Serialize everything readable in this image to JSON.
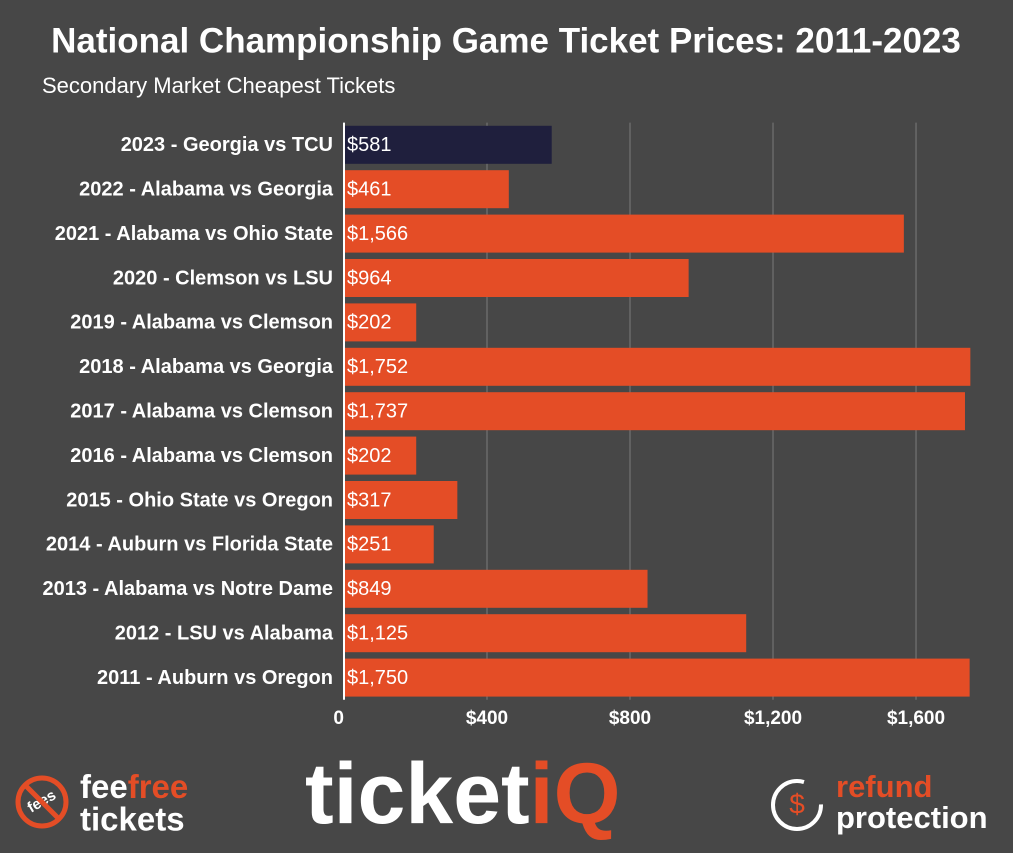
{
  "chart_data": {
    "type": "barh",
    "title": "National Championship Game Ticket Prices: 2011-2023",
    "subtitle": "Secondary Market Cheapest Tickets",
    "categories": [
      "2023 - Georgia vs TCU",
      "2022 - Alabama vs Georgia",
      "2021 - Alabama vs Ohio State",
      "2020 - Clemson vs LSU",
      "2019 - Alabama vs Clemson",
      "2018 - Alabama vs Georgia",
      "2017 - Alabama vs Clemson",
      "2016 - Alabama vs Clemson",
      "2015 - Ohio State vs Oregon",
      "2014 - Auburn vs Florida State",
      "2013 - Alabama vs Notre Dame",
      "2012 - LSU vs Alabama",
      "2011 - Auburn vs Oregon"
    ],
    "values": [
      581,
      461,
      1566,
      964,
      202,
      1752,
      1737,
      202,
      317,
      251,
      849,
      1125,
      1750
    ],
    "value_labels": [
      "$581",
      "$461",
      "$1,566",
      "$964",
      "$202",
      "$1,752",
      "$1,737",
      "$202",
      "$317",
      "$251",
      "$849",
      "$1,125",
      "$1,750"
    ],
    "colors": [
      "#1f1f3d",
      "#e44d26",
      "#e44d26",
      "#e44d26",
      "#e44d26",
      "#e44d26",
      "#e44d26",
      "#e44d26",
      "#e44d26",
      "#e44d26",
      "#e44d26",
      "#e44d26",
      "#e44d26"
    ],
    "xlim": [
      0,
      1765
    ],
    "xticks": [
      0,
      {
        "value": 400,
        "label": "$400"
      },
      {
        "value": 800,
        "label": "$800"
      },
      {
        "value": 1200,
        "label": "$1,200"
      },
      {
        "value": 1600,
        "label": "$1,600"
      }
    ],
    "grid": true
  },
  "logos": {
    "icon": "fees",
    "left_a": "fee",
    "left_b": "free",
    "left_c": "tickets",
    "center_a": "ticket",
    "center_b": "iQ",
    "right_a": "refund",
    "right_b": "protection",
    "right_icon": "$"
  }
}
